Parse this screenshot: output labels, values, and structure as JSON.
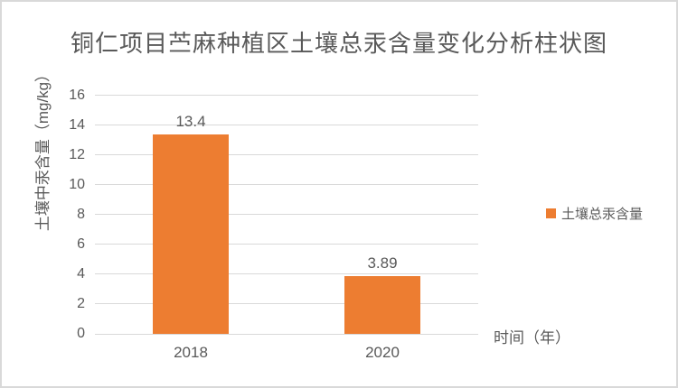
{
  "chart_data": {
    "type": "bar",
    "title": "铜仁项目苎麻种植区土壤总汞含量变化分析柱状图",
    "categories": [
      "2018",
      "2020"
    ],
    "values": [
      13.4,
      3.89
    ],
    "data_labels": [
      "13.4",
      "3.89"
    ],
    "series": [
      {
        "name": "土壤总汞含量",
        "values": [
          13.4,
          3.89
        ]
      }
    ],
    "xlabel": "时间（年）",
    "ylabel": "土壤中汞含量（mg/kg）",
    "ylim": [
      0,
      16
    ],
    "yticks": [
      0,
      2,
      4,
      6,
      8,
      10,
      12,
      14,
      16
    ],
    "grid": true,
    "legend": {
      "position": "right",
      "label": "土壤总汞含量"
    },
    "colors": {
      "bar": "#ED7D31",
      "text": "#595959",
      "gridline": "#D9D9D9",
      "frame": "#D9D9D9"
    }
  }
}
